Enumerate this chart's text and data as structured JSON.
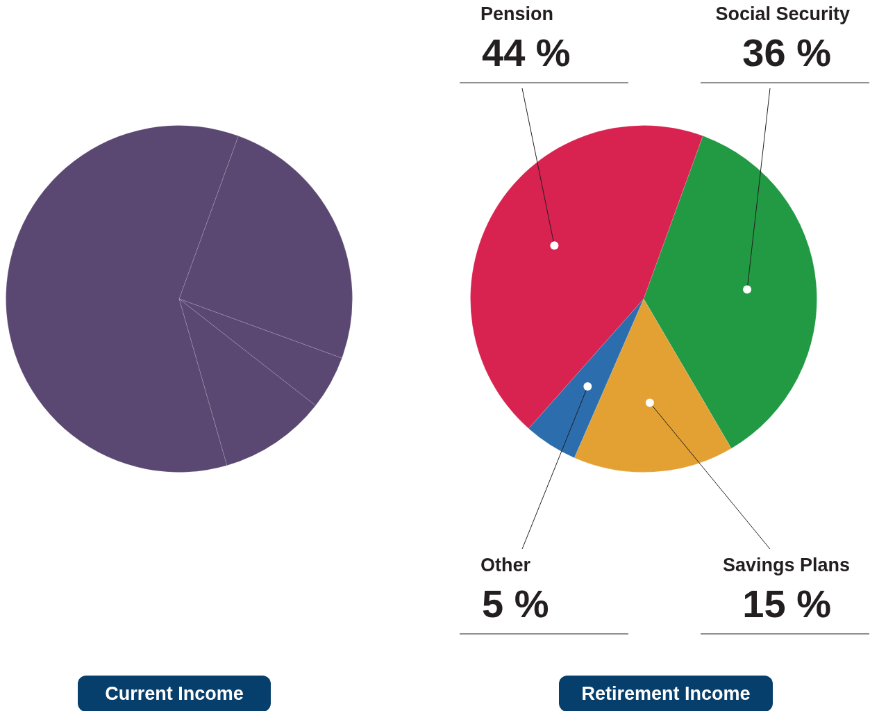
{
  "chart_data": [
    {
      "type": "pie",
      "title": "Current Income",
      "categories": [
        null,
        null,
        null,
        null
      ],
      "values": [
        25,
        5,
        10,
        60
      ],
      "colors": [
        "#5a4872",
        "#5a4872",
        "#5a4872",
        "#5a4872"
      ]
    },
    {
      "type": "pie",
      "title": "Retirement Income",
      "categories": [
        "Social Security",
        "Savings Plans",
        "Other",
        "Pension"
      ],
      "values": [
        36,
        15,
        5,
        44
      ],
      "colors": [
        "#229943",
        "#e3a033",
        "#2b6dad",
        "#d8224f"
      ],
      "value_labels": [
        "36 %",
        "15 %",
        "5 %",
        "44 %"
      ]
    }
  ]
}
